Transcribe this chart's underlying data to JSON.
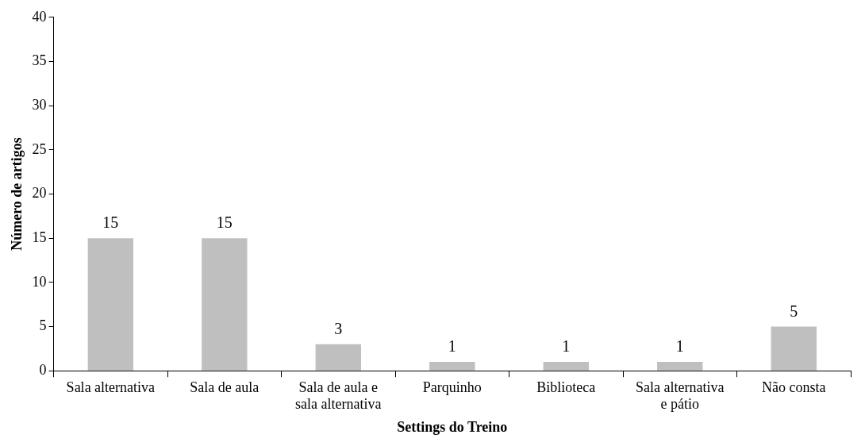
{
  "chart_data": {
    "type": "bar",
    "xlabel": "Settings do Treino",
    "ylabel": "Número de artigos",
    "categories": [
      "Sala alternativa",
      "Sala de aula",
      "Sala de aula e sala alternativa",
      "Parquinho",
      "Biblioteca",
      "Sala alternativa e pátio",
      "Não consta"
    ],
    "values": [
      15,
      15,
      3,
      1,
      1,
      1,
      5
    ],
    "color": "#bfbfbf",
    "ylim": [
      0,
      40
    ],
    "yticks": [
      0,
      5,
      10,
      15,
      20,
      25,
      30,
      35,
      40
    ],
    "grid": false,
    "legend": false,
    "data_labels": true
  }
}
